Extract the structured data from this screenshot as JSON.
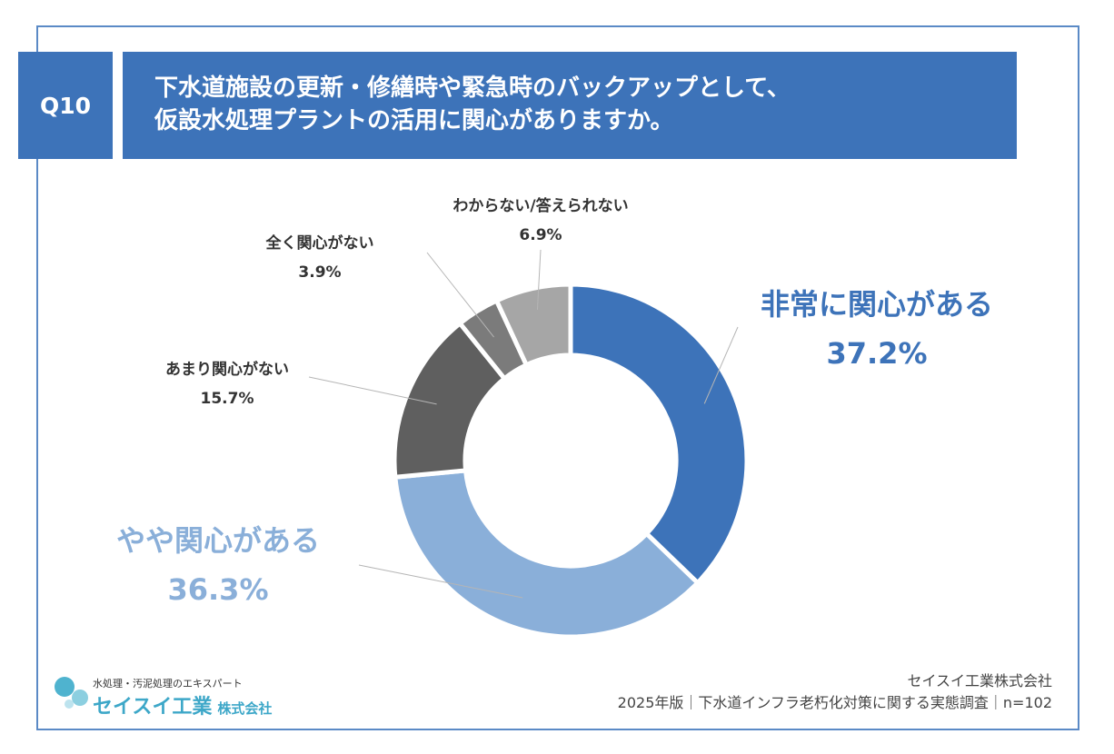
{
  "question": {
    "number": "Q10",
    "title_line1": "下水道施設の更新・修繕時や緊急時のバックアップとして、",
    "title_line2": "仮設水処理プラントの活用に関心がありますか。"
  },
  "chart_data": {
    "type": "pie",
    "donut": true,
    "categories": [
      "非常に関心がある",
      "やや関心がある",
      "あまり関心がない",
      "全く関心がない",
      "わからない/答えられない"
    ],
    "values": [
      37.2,
      36.3,
      15.7,
      3.9,
      6.9
    ],
    "value_labels": [
      "37.2%",
      "36.3%",
      "15.7%",
      "3.9%",
      "6.9%"
    ],
    "colors": [
      "#3d73b9",
      "#8aafd9",
      "#5f5f5f",
      "#7b7b7b",
      "#a6a6a6"
    ],
    "label_colors": [
      "#3d73b9",
      "#8aafd9",
      "#333333",
      "#333333",
      "#333333"
    ]
  },
  "footer": {
    "logo_tagline": "水処理・汚泥処理のエキスパート",
    "logo_name": "セイスイ工業",
    "logo_suffix": "株式会社",
    "company": "セイスイ工業株式会社",
    "survey": "2025年版｜下水道インフラ老朽化対策に関する実態調査｜n=102"
  }
}
